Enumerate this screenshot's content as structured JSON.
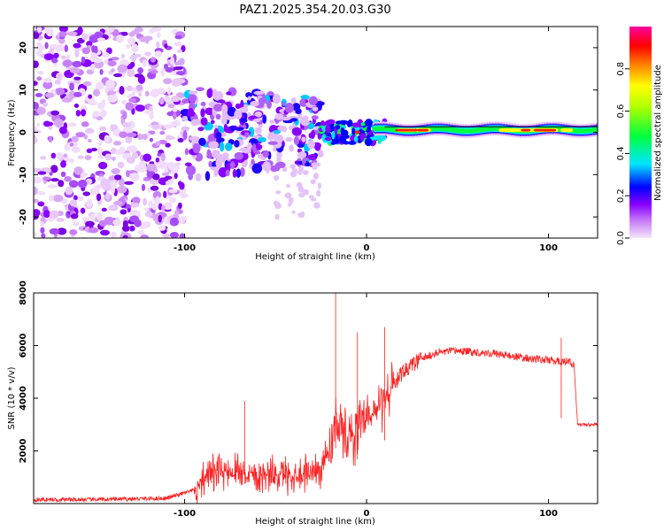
{
  "chart_data": [
    {
      "type": "heatmap",
      "title": "PAZ1.2025.354.20.03.G30",
      "xlabel": "Height of straight line (km)",
      "ylabel": "Frequency (Hz)",
      "xlim": [
        -183,
        127
      ],
      "ylim": [
        -25,
        25
      ],
      "xticks": [
        -100,
        0,
        100
      ],
      "yticks": [
        -20,
        -10,
        0,
        10,
        20
      ],
      "colorbar": {
        "label": "Normalized spectral amplitude",
        "range": [
          0.0,
          1.0
        ],
        "ticks": [
          "0.0",
          "0.2",
          "0.4",
          "0.6",
          "0.8"
        ],
        "colors": [
          "#e8c8f8",
          "#8800ff",
          "#0000ff",
          "#00e5ff",
          "#00ff40",
          "#ffff00",
          "#ff8000",
          "#ff0000",
          "#ff00a0"
        ]
      },
      "regions": [
        {
          "x_range": [
            -183,
            -100
          ],
          "freq_spread": 25,
          "amplitude": "low, noisy"
        },
        {
          "x_range": [
            -100,
            -25
          ],
          "freq_spread": 10,
          "amplitude": "medium"
        },
        {
          "x_range": [
            -25,
            127
          ],
          "freq_center": 0.5,
          "freq_spread": 2,
          "amplitude": "high"
        }
      ]
    },
    {
      "type": "line",
      "xlabel": "Height of straight line (km)",
      "ylabel": "SNR (10 * v/v)",
      "xlim": [
        -183,
        127
      ],
      "ylim": [
        0,
        8000
      ],
      "xticks": [
        -100,
        0,
        100
      ],
      "yticks": [
        2000,
        4000,
        6000,
        8000
      ],
      "color": "#ff2020",
      "x": [
        -183,
        -150,
        -110,
        -95,
        -90,
        -80,
        -70,
        -60,
        -50,
        -40,
        -30,
        -25,
        -20,
        -17,
        -15,
        -10,
        -5,
        0,
        5,
        10,
        15,
        20,
        30,
        40,
        50,
        60,
        70,
        80,
        90,
        100,
        105,
        108,
        110,
        112,
        114,
        116,
        120,
        127
      ],
      "values": [
        150,
        150,
        200,
        500,
        1000,
        1200,
        1300,
        1100,
        1100,
        1100,
        1200,
        1400,
        2000,
        3500,
        2800,
        2500,
        2800,
        3000,
        3500,
        4000,
        4500,
        5000,
        5500,
        5750,
        5800,
        5750,
        5700,
        5600,
        5500,
        5450,
        5400,
        5400,
        5400,
        5350,
        5300,
        3000,
        3000,
        3000
      ],
      "spikes": [
        {
          "x": -67,
          "value": 3900
        },
        {
          "x": -17,
          "value": 8000
        },
        {
          "x": -5,
          "value": 6500
        },
        {
          "x": 10,
          "value": 6700
        },
        {
          "x": 107,
          "value": 6300
        }
      ]
    }
  ]
}
